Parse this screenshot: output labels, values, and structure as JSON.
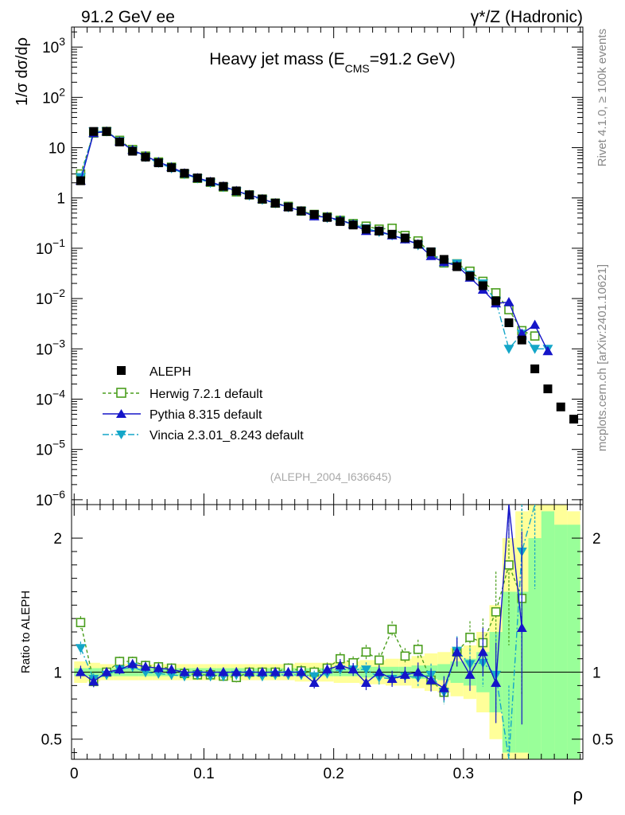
{
  "header": {
    "energy_label": "91.2 GeV ee",
    "process_label": "γ*/Z (Hadronic)"
  },
  "side_labels": {
    "rivet": "Rivet 4.1.0, ≥ 100k events",
    "mcplots": "mcplots.cern.ch [arXiv:2401.10621]"
  },
  "chart_data": [
    {
      "panel": "main",
      "type": "line",
      "title": "Heavy jet mass (E",
      "title_sub": "CMS",
      "title_tail": "=91.2 GeV)",
      "ylabel": "1/σ dσ/dρ",
      "xlabel": "ρ",
      "yscale": "log",
      "xlim": [
        -0.002,
        0.392
      ],
      "ylim": [
        8e-07,
        2500
      ],
      "analysis_id": "(ALEPH_2004_I636645)",
      "y_ticks": [
        {
          "value": 1000.0,
          "base": "10",
          "exp": "3"
        },
        {
          "value": 100.0,
          "base": "10",
          "exp": "2"
        },
        {
          "value": 10,
          "base": "10",
          "exp": ""
        },
        {
          "value": 1,
          "base": "1",
          "exp": ""
        },
        {
          "value": 0.1,
          "base": "10",
          "exp": "−1"
        },
        {
          "value": 0.01,
          "base": "10",
          "exp": "−2"
        },
        {
          "value": 0.001,
          "base": "10",
          "exp": "−3"
        },
        {
          "value": 0.0001,
          "base": "10",
          "exp": "−4"
        },
        {
          "value": 1e-05,
          "base": "10",
          "exp": "−5"
        },
        {
          "value": 1e-06,
          "base": "10",
          "exp": "−6"
        }
      ],
      "x": [
        0.005,
        0.015,
        0.025,
        0.035,
        0.045,
        0.055,
        0.065,
        0.075,
        0.085,
        0.095,
        0.105,
        0.115,
        0.125,
        0.135,
        0.145,
        0.155,
        0.165,
        0.175,
        0.185,
        0.195,
        0.205,
        0.215,
        0.225,
        0.235,
        0.245,
        0.255,
        0.265,
        0.275,
        0.285,
        0.295,
        0.305,
        0.315,
        0.325,
        0.335,
        0.345,
        0.355,
        0.365,
        0.375,
        0.385
      ],
      "legend": [
        {
          "name": "ALEPH",
          "marker": "square-filled",
          "color": "#000000"
        },
        {
          "name": "Herwig 7.2.1 default",
          "marker": "square-open",
          "color": "#4a9e1d"
        },
        {
          "name": "Pythia 8.315 default",
          "marker": "triangle-up",
          "color": "#1515c8"
        },
        {
          "name": "Vincia 2.3.01_8.243 default",
          "marker": "triangle-down",
          "color": "#14a6c8"
        }
      ],
      "series": [
        {
          "name": "ALEPH",
          "color": "#000000",
          "values": [
            2.2,
            21,
            21,
            13,
            8.5,
            6.5,
            5.0,
            4.0,
            3.1,
            2.5,
            2.1,
            1.7,
            1.38,
            1.15,
            0.95,
            0.79,
            0.66,
            0.55,
            0.47,
            0.41,
            0.34,
            0.29,
            0.24,
            0.22,
            0.19,
            0.16,
            0.12,
            0.085,
            0.06,
            0.043,
            0.028,
            0.018,
            0.009,
            0.0033,
            0.0015,
            0.0004,
            0.00016,
            7e-05,
            4e-05
          ]
        },
        {
          "name": "Herwig 7.2.1 default",
          "color": "#4a9e1d",
          "values": [
            3.0,
            19.5,
            21,
            14,
            9.2,
            6.8,
            5.2,
            4.1,
            3.0,
            2.45,
            2.05,
            1.65,
            1.32,
            1.15,
            0.95,
            0.79,
            0.68,
            0.55,
            0.47,
            0.42,
            0.36,
            0.31,
            0.275,
            0.24,
            0.25,
            0.18,
            0.14,
            0.08,
            0.051,
            0.049,
            0.035,
            0.022,
            0.013,
            0.006,
            0.0023,
            0.0018,
            null,
            null,
            null
          ]
        },
        {
          "name": "Pythia 8.315 default",
          "color": "#1515c8",
          "values": [
            2.2,
            19.5,
            21,
            13.3,
            9.0,
            6.8,
            5.2,
            4.1,
            3.1,
            2.5,
            2.1,
            1.7,
            1.38,
            1.15,
            0.95,
            0.79,
            0.66,
            0.55,
            0.43,
            0.42,
            0.36,
            0.3,
            0.22,
            0.22,
            0.18,
            0.15,
            0.12,
            0.07,
            0.053,
            0.045,
            0.026,
            0.015,
            0.008,
            0.0085,
            0.002,
            0.003,
            0.0009,
            null,
            null
          ]
        },
        {
          "name": "Vincia 2.3.01_8.243 default",
          "color": "#14a6c8",
          "values": [
            2.6,
            21,
            21,
            13.5,
            8.8,
            6.5,
            5.0,
            3.9,
            3.0,
            2.45,
            2.0,
            1.65,
            1.35,
            1.12,
            0.92,
            0.78,
            0.65,
            0.55,
            0.45,
            0.4,
            0.35,
            0.3,
            0.25,
            0.21,
            0.18,
            0.155,
            0.115,
            0.085,
            0.052,
            0.05,
            0.03,
            0.02,
            0.009,
            0.001,
            0.002,
            0.001,
            0.001,
            null,
            null
          ]
        }
      ]
    },
    {
      "panel": "ratio",
      "type": "line",
      "ylabel": "Ratio to ALEPH",
      "xlabel": "ρ",
      "ylim": [
        0.35,
        2.25
      ],
      "xlim": [
        -0.002,
        0.392
      ],
      "y_ticks": [
        0.5,
        1,
        2
      ],
      "y_tick_labels": [
        "0.5",
        "1",
        "2"
      ],
      "x_ticks": [
        0,
        0.1,
        0.2,
        0.3
      ],
      "x_tick_labels": [
        "0",
        "0.1",
        "0.2",
        "0.3"
      ],
      "band_stat": [
        0.03,
        0.03,
        0.03,
        0.03,
        0.03,
        0.03,
        0.03,
        0.03,
        0.03,
        0.03,
        0.03,
        0.03,
        0.03,
        0.03,
        0.03,
        0.03,
        0.03,
        0.03,
        0.03,
        0.03,
        0.03,
        0.03,
        0.04,
        0.04,
        0.04,
        0.04,
        0.05,
        0.05,
        0.06,
        0.08,
        0.1,
        0.15,
        0.3,
        0.6,
        0.6,
        1.0,
        1.2,
        1.1,
        1.1
      ],
      "band_total": [
        0.08,
        0.07,
        0.06,
        0.06,
        0.06,
        0.06,
        0.06,
        0.06,
        0.06,
        0.06,
        0.06,
        0.06,
        0.06,
        0.06,
        0.06,
        0.06,
        0.06,
        0.07,
        0.07,
        0.07,
        0.08,
        0.08,
        0.09,
        0.09,
        0.1,
        0.1,
        0.12,
        0.14,
        0.15,
        0.18,
        0.2,
        0.3,
        0.5,
        1.0,
        1.2,
        1.3,
        1.3,
        1.25,
        1.2
      ],
      "series": [
        {
          "name": "Herwig 7.2.1 default",
          "color": "#4a9e1d",
          "values": [
            1.37,
            0.93,
            1.0,
            1.08,
            1.08,
            1.05,
            1.04,
            1.03,
            0.99,
            0.98,
            0.98,
            0.97,
            0.96,
            1.0,
            1.0,
            1.0,
            1.03,
            1.01,
            1.0,
            1.03,
            1.1,
            1.07,
            1.15,
            1.09,
            1.32,
            1.12,
            1.17,
            0.94,
            0.85,
            1.15,
            1.26,
            1.22,
            1.45,
            1.8,
            1.55,
            null,
            null,
            null,
            null
          ]
        },
        {
          "name": "Pythia 8.315 default",
          "color": "#1515c8",
          "values": [
            1.0,
            0.93,
            1.0,
            1.02,
            1.06,
            1.04,
            1.03,
            1.02,
            1.0,
            1.0,
            1.0,
            1.0,
            1.0,
            1.0,
            1.0,
            1.0,
            1.0,
            1.0,
            0.92,
            1.02,
            1.05,
            1.02,
            0.92,
            1.0,
            0.95,
            0.98,
            1.0,
            0.94,
            0.88,
            1.15,
            0.98,
            1.15,
            0.92,
            2.6,
            1.33,
            null,
            null,
            null,
            null
          ]
        },
        {
          "name": "Vincia 2.3.01_8.243 default",
          "color": "#14a6c8",
          "values": [
            1.18,
            0.95,
            0.98,
            1.02,
            1.04,
            1.0,
            0.99,
            0.98,
            0.97,
            0.98,
            0.97,
            0.97,
            0.98,
            0.98,
            0.97,
            0.98,
            0.98,
            0.98,
            0.97,
            0.99,
            1.02,
            1.02,
            1.02,
            0.96,
            0.95,
            0.97,
            0.96,
            0.98,
            0.85,
            1.16,
            1.06,
            1.07,
            0.98,
            0.3,
            1.9,
            2.4,
            null,
            null,
            null
          ]
        }
      ]
    }
  ]
}
